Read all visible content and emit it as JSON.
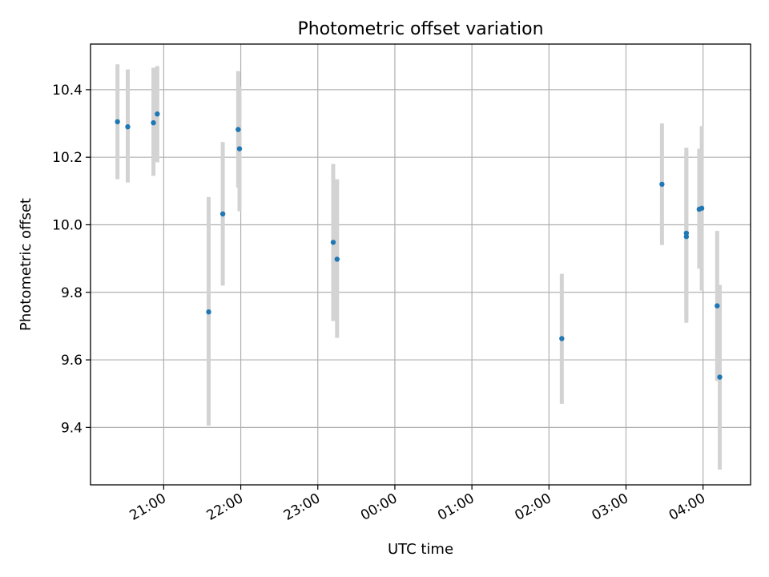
{
  "chart_data": {
    "type": "scatter",
    "title": "Photometric offset variation",
    "xlabel": "UTC time",
    "ylabel": "Photometric offset",
    "x_axis": {
      "type": "time",
      "range": [
        "20:03",
        "04:37"
      ],
      "ticks": [
        "21:00",
        "22:00",
        "23:00",
        "00:00",
        "01:00",
        "02:00",
        "03:00",
        "04:00"
      ]
    },
    "y_axis": {
      "range": [
        9.23,
        10.535
      ],
      "ticks": [
        9.4,
        9.6,
        9.8,
        10.0,
        10.2,
        10.4
      ]
    },
    "grid": true,
    "point_color": "#1f77b4",
    "errorbar_color": "#d3d3d3",
    "points": [
      {
        "x": "20:24",
        "y": 10.305,
        "err_low": 10.135,
        "err_high": 10.475
      },
      {
        "x": "20:32",
        "y": 10.29,
        "err_low": 10.125,
        "err_high": 10.46
      },
      {
        "x": "20:52",
        "y": 10.302,
        "err_low": 10.145,
        "err_high": 10.465
      },
      {
        "x": "20:55",
        "y": 10.328,
        "err_low": 10.185,
        "err_high": 10.47
      },
      {
        "x": "21:35",
        "y": 9.742,
        "err_low": 9.405,
        "err_high": 10.082
      },
      {
        "x": "21:46",
        "y": 10.032,
        "err_low": 9.82,
        "err_high": 10.245
      },
      {
        "x": "21:58",
        "y": 10.282,
        "err_low": 10.11,
        "err_high": 10.455
      },
      {
        "x": "21:59",
        "y": 10.225,
        "err_low": 10.04,
        "err_high": 10.41
      },
      {
        "x": "23:12",
        "y": 9.948,
        "err_low": 9.715,
        "err_high": 10.18
      },
      {
        "x": "23:15",
        "y": 9.898,
        "err_low": 9.665,
        "err_high": 10.135
      },
      {
        "x": "02:10",
        "y": 9.663,
        "err_low": 9.47,
        "err_high": 9.855
      },
      {
        "x": "03:28",
        "y": 10.12,
        "err_low": 9.94,
        "err_high": 10.3
      },
      {
        "x": "03:47",
        "y": 9.975,
        "err_low": 9.72,
        "err_high": 10.228
      },
      {
        "x": "03:47",
        "y": 9.965,
        "err_low": 9.71,
        "err_high": 10.22
      },
      {
        "x": "03:57",
        "y": 10.046,
        "err_low": 9.87,
        "err_high": 10.225
      },
      {
        "x": "03:59",
        "y": 10.049,
        "err_low": 9.805,
        "err_high": 10.292
      },
      {
        "x": "04:11",
        "y": 9.76,
        "err_low": 9.538,
        "err_high": 9.982
      },
      {
        "x": "04:13",
        "y": 9.549,
        "err_low": 9.275,
        "err_high": 9.822
      }
    ]
  }
}
